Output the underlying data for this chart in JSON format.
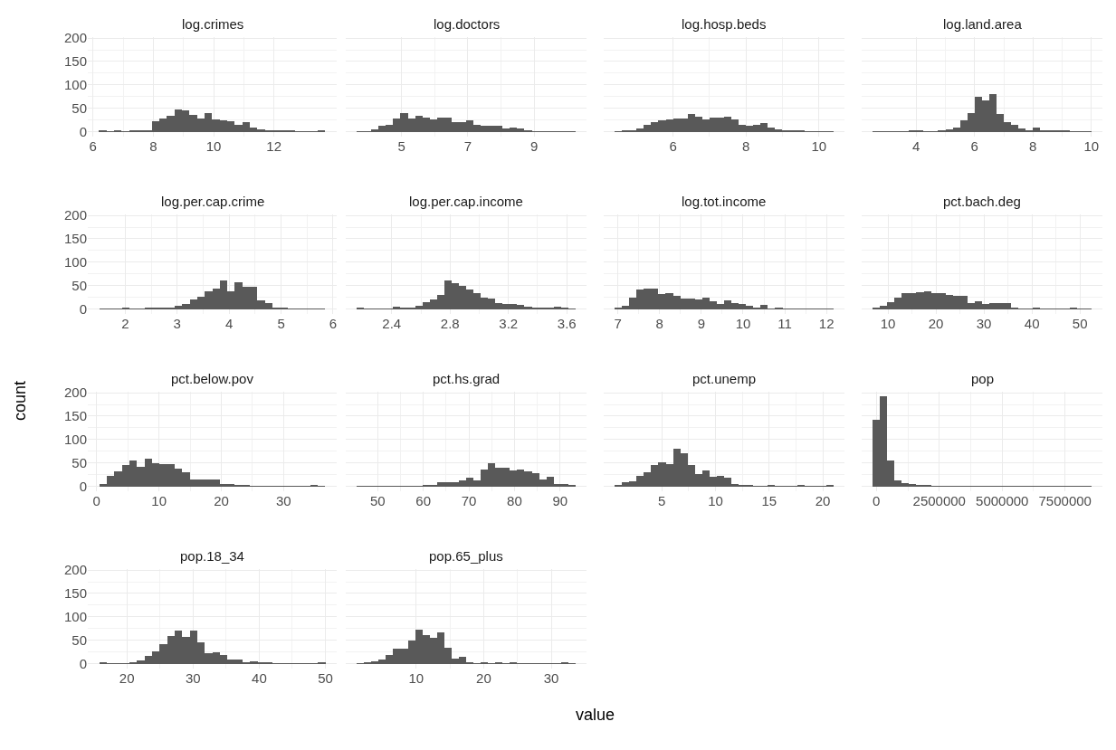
{
  "chart_data": [
    {
      "type": "histogram",
      "title": "log.crimes",
      "color": "#595959",
      "grid": true,
      "ylim": [
        -10,
        202
      ],
      "yticks": [
        0,
        50,
        100,
        150,
        200
      ],
      "xlim": [
        5.83,
        14.08
      ],
      "xticks": [
        6,
        8,
        10,
        12
      ],
      "bins": [
        6.2,
        6.45,
        6.7,
        6.95,
        7.2,
        7.45,
        7.7,
        7.95,
        8.2,
        8.45,
        8.7,
        8.95,
        9.2,
        9.45,
        9.7,
        9.95,
        10.2,
        10.45,
        10.7,
        10.95,
        11.2,
        11.45,
        11.7,
        11.95,
        12.2,
        12.45,
        12.7,
        12.95,
        13.2,
        13.45,
        13.7
      ],
      "values": [
        2,
        1,
        2,
        1,
        2,
        3,
        3,
        22,
        29,
        35,
        47,
        45,
        37,
        28,
        41,
        26,
        24,
        22,
        15,
        20,
        10,
        6,
        4,
        2,
        2,
        2,
        1,
        1,
        1,
        2
      ]
    },
    {
      "type": "histogram",
      "title": "log.doctors",
      "color": "#595959",
      "grid": true,
      "tick_labels": "x",
      "ylim": [
        -10,
        202
      ],
      "yticks": [
        0,
        50,
        100,
        150,
        200
      ],
      "xlim": [
        3.32,
        10.58
      ],
      "xticks": [
        5,
        7,
        9
      ],
      "bins": [
        3.65,
        3.87,
        4.09,
        4.31,
        4.53,
        4.75,
        4.97,
        5.19,
        5.41,
        5.63,
        5.85,
        6.07,
        6.29,
        6.51,
        6.73,
        6.95,
        7.17,
        7.39,
        7.61,
        7.83,
        8.05,
        8.27,
        8.49,
        8.71,
        8.93,
        9.15,
        9.37,
        9.59,
        9.81,
        10.03,
        10.25
      ],
      "values": [
        1,
        1,
        5,
        14,
        16,
        29,
        41,
        29,
        35,
        30,
        26,
        31,
        31,
        21,
        21,
        24,
        16,
        14,
        14,
        14,
        7,
        9,
        8,
        3,
        1,
        1,
        1,
        1,
        1,
        1
      ]
    },
    {
      "type": "histogram",
      "title": "log.hosp.beds",
      "color": "#595959",
      "grid": true,
      "tick_labels": "x",
      "ylim": [
        -10,
        202
      ],
      "yticks": [
        0,
        50,
        100,
        150,
        200
      ],
      "xlim": [
        4.1,
        10.7
      ],
      "xticks": [
        6,
        8,
        10
      ],
      "bins": [
        4.4,
        4.6,
        4.8,
        5.0,
        5.2,
        5.4,
        5.6,
        5.8,
        6.0,
        6.2,
        6.4,
        6.6,
        6.8,
        7.0,
        7.2,
        7.4,
        7.6,
        7.8,
        8.0,
        8.2,
        8.4,
        8.6,
        8.8,
        9.0,
        9.2,
        9.4,
        9.6,
        9.8,
        10.0,
        10.2,
        10.4
      ],
      "values": [
        1,
        2,
        2,
        7,
        15,
        20,
        24,
        26,
        28,
        28,
        39,
        33,
        27,
        31,
        30,
        33,
        26,
        15,
        13,
        16,
        18,
        9,
        6,
        2,
        4,
        2,
        1,
        1,
        1,
        1
      ]
    },
    {
      "type": "histogram",
      "title": "log.land.area",
      "color": "#595959",
      "grid": true,
      "tick_labels": "x",
      "ylim": [
        -10,
        202
      ],
      "yticks": [
        0,
        50,
        100,
        150,
        200
      ],
      "xlim": [
        2.13,
        10.38
      ],
      "xticks": [
        4,
        6,
        8,
        10
      ],
      "bins": [
        2.5,
        2.75,
        3.0,
        3.25,
        3.5,
        3.75,
        4.0,
        4.25,
        4.5,
        4.75,
        5.0,
        5.25,
        5.5,
        5.75,
        6.0,
        6.25,
        6.5,
        6.75,
        7.0,
        7.25,
        7.5,
        7.75,
        8.0,
        8.25,
        8.5,
        8.75,
        9.0,
        9.25,
        9.5,
        9.75,
        10.0
      ],
      "values": [
        1,
        1,
        1,
        1,
        1,
        4,
        4,
        1,
        1,
        3,
        5,
        9,
        24,
        41,
        75,
        68,
        81,
        38,
        21,
        15,
        7,
        4,
        10,
        4,
        4,
        4,
        2,
        1,
        1,
        1
      ]
    },
    {
      "type": "histogram",
      "title": "log.per.cap.crime",
      "color": "#595959",
      "grid": true,
      "ylim": [
        -10,
        202
      ],
      "yticks": [
        0,
        50,
        100,
        150,
        200
      ],
      "xlim": [
        1.28,
        6.07
      ],
      "xticks": [
        2,
        3,
        4,
        5,
        6
      ],
      "bins": [
        1.5,
        1.645,
        1.79,
        1.935,
        2.08,
        2.225,
        2.37,
        2.515,
        2.66,
        2.805,
        2.95,
        3.095,
        3.24,
        3.385,
        3.53,
        3.675,
        3.82,
        3.965,
        4.11,
        4.255,
        4.4,
        4.545,
        4.69,
        4.835,
        4.98,
        5.125,
        5.27,
        5.415,
        5.56,
        5.705,
        5.85
      ],
      "values": [
        1,
        1,
        1,
        3,
        1,
        1,
        2,
        2,
        2,
        3,
        7,
        11,
        21,
        27,
        39,
        44,
        61,
        38,
        58,
        48,
        48,
        19,
        13,
        3,
        2,
        1,
        1,
        1,
        1,
        1
      ]
    },
    {
      "type": "histogram",
      "title": "log.per.cap.income",
      "color": "#595959",
      "grid": true,
      "tick_labels": "x",
      "ylim": [
        -10,
        202
      ],
      "yticks": [
        0,
        50,
        100,
        150,
        200
      ],
      "xlim": [
        2.085,
        3.735
      ],
      "xticks": [
        2.4,
        2.8,
        3.2,
        3.6
      ],
      "bins": [
        2.16,
        2.21,
        2.26,
        2.31,
        2.36,
        2.41,
        2.46,
        2.51,
        2.56,
        2.61,
        2.66,
        2.71,
        2.76,
        2.81,
        2.86,
        2.91,
        2.96,
        3.01,
        3.06,
        3.11,
        3.16,
        3.21,
        3.26,
        3.31,
        3.36,
        3.41,
        3.46,
        3.51,
        3.56,
        3.61,
        3.66
      ],
      "values": [
        3,
        1,
        1,
        1,
        1,
        5,
        2,
        3,
        7,
        15,
        20,
        30,
        61,
        55,
        49,
        43,
        35,
        25,
        23,
        14,
        12,
        11,
        9,
        6,
        4,
        3,
        2,
        5,
        2,
        1
      ]
    },
    {
      "type": "histogram",
      "title": "log.tot.income",
      "color": "#595959",
      "grid": true,
      "tick_labels": "x",
      "ylim": [
        -10,
        202
      ],
      "yticks": [
        0,
        50,
        100,
        150,
        200
      ],
      "xlim": [
        6.66,
        12.43
      ],
      "xticks": [
        7,
        8,
        9,
        10,
        11,
        12
      ],
      "bins": [
        6.92,
        7.095,
        7.27,
        7.445,
        7.62,
        7.795,
        7.97,
        8.145,
        8.32,
        8.495,
        8.67,
        8.845,
        9.02,
        9.195,
        9.37,
        9.545,
        9.72,
        9.895,
        10.07,
        10.245,
        10.42,
        10.595,
        10.77,
        10.945,
        11.12,
        11.295,
        11.47,
        11.645,
        11.82,
        11.995,
        12.17
      ],
      "values": [
        2,
        8,
        24,
        42,
        44,
        44,
        33,
        35,
        29,
        23,
        23,
        20,
        24,
        17,
        12,
        18,
        14,
        11,
        8,
        4,
        9,
        1,
        3,
        1,
        1,
        1,
        1,
        1,
        1,
        1
      ]
    },
    {
      "type": "histogram",
      "title": "pct.bach.deg",
      "color": "#595959",
      "grid": true,
      "tick_labels": "x",
      "ylim": [
        -10,
        202
      ],
      "yticks": [
        0,
        50,
        100,
        150,
        200
      ],
      "xlim": [
        4.52,
        54.68
      ],
      "xticks": [
        10,
        20,
        30,
        40,
        50
      ],
      "bins": [
        6.8,
        8.32,
        9.84,
        11.36,
        12.88,
        14.4,
        15.92,
        17.44,
        18.96,
        20.48,
        22,
        23.52,
        25.04,
        26.56,
        28.08,
        29.6,
        31.12,
        32.64,
        34.16,
        35.68,
        37.2,
        38.72,
        40.24,
        41.76,
        43.28,
        44.8,
        46.32,
        47.84,
        49.36,
        50.88,
        52.4
      ],
      "values": [
        2,
        7,
        15,
        25,
        35,
        34,
        36,
        39,
        34,
        34,
        31,
        28,
        28,
        13,
        17,
        11,
        14,
        13,
        13,
        4,
        1,
        1,
        2,
        1,
        1,
        1,
        1,
        3,
        1,
        1
      ]
    },
    {
      "type": "histogram",
      "title": "pct.below.pov",
      "ylabel": "count",
      "color": "#595959",
      "grid": true,
      "ylim": [
        -10,
        202
      ],
      "yticks": [
        0,
        50,
        100,
        150,
        200
      ],
      "xlim": [
        -1.42,
        38.52
      ],
      "xticks": [
        0,
        10,
        20,
        30
      ],
      "bins": [
        0.4,
        1.61,
        2.82,
        4.03,
        5.24,
        6.45,
        7.66,
        8.87,
        10.08,
        11.29,
        12.5,
        13.71,
        14.92,
        16.13,
        17.34,
        18.55,
        19.76,
        20.97,
        22.18,
        23.39,
        24.6,
        25.81,
        27.02,
        28.23,
        29.44,
        30.65,
        31.86,
        33.07,
        34.28,
        35.49,
        36.7
      ],
      "values": [
        5,
        22,
        32,
        46,
        56,
        42,
        60,
        50,
        48,
        48,
        38,
        30,
        15,
        15,
        15,
        15,
        6,
        5,
        4,
        4,
        1,
        1,
        1,
        1,
        1,
        1,
        1,
        1,
        3,
        1
      ]
    },
    {
      "type": "histogram",
      "title": "pct.hs.grad",
      "color": "#595959",
      "grid": true,
      "tick_labels": "x",
      "ylim": [
        -10,
        202
      ],
      "yticks": [
        0,
        50,
        100,
        150,
        200
      ],
      "xlim": [
        43,
        95.8
      ],
      "xticks": [
        50,
        60,
        70,
        80,
        90
      ],
      "bins": [
        45.4,
        47,
        48.6,
        50.2,
        51.8,
        53.4,
        55,
        56.6,
        58.2,
        59.8,
        61.4,
        63,
        64.6,
        66.2,
        67.8,
        69.4,
        71,
        72.6,
        74.2,
        75.8,
        77.4,
        79,
        80.6,
        82.2,
        83.8,
        85.4,
        87,
        88.6,
        90.2,
        91.8,
        93.4
      ],
      "values": [
        1,
        1,
        1,
        1,
        1,
        1,
        1,
        1,
        1,
        3,
        3,
        9,
        9,
        9,
        14,
        18,
        13,
        36,
        49,
        40,
        40,
        34,
        36,
        33,
        28,
        16,
        20,
        5,
        6,
        2
      ]
    },
    {
      "type": "histogram",
      "title": "pct.unemp",
      "color": "#595959",
      "grid": true,
      "tick_labels": "x",
      "ylim": [
        -10,
        202
      ],
      "yticks": [
        0,
        50,
        100,
        150,
        200
      ],
      "xlim": [
        -0.42,
        22.02
      ],
      "xticks": [
        5,
        10,
        15,
        20
      ],
      "bins": [
        0.6,
        1.28,
        1.96,
        2.64,
        3.32,
        4,
        4.68,
        5.36,
        6.04,
        6.72,
        7.4,
        8.08,
        8.76,
        9.44,
        10.12,
        10.8,
        11.48,
        12.16,
        12.84,
        13.52,
        14.2,
        14.88,
        15.56,
        16.24,
        16.92,
        17.6,
        18.28,
        18.96,
        19.64,
        20.32,
        21
      ],
      "values": [
        2,
        9,
        12,
        22,
        30,
        45,
        51,
        47,
        80,
        70,
        45,
        26,
        35,
        20,
        23,
        18,
        5,
        3,
        4,
        1,
        1,
        3,
        1,
        1,
        1,
        3,
        1,
        1,
        1,
        2
      ]
    },
    {
      "type": "histogram",
      "title": "pop",
      "color": "#595959",
      "grid": true,
      "tick_labels": "x",
      "ylim": [
        -10,
        202
      ],
      "yticks": [
        0,
        50,
        100,
        150,
        200
      ],
      "xlim": [
        -585000,
        8985000
      ],
      "xticks": [
        0,
        2500000,
        5000000,
        7500000
      ],
      "bins": [
        -150000,
        140000,
        430000,
        720000,
        1010000,
        1300000,
        1590000,
        1880000,
        2170000,
        2460000,
        2750000,
        3040000,
        3330000,
        3620000,
        3910000,
        4200000,
        4490000,
        4780000,
        5070000,
        5360000,
        5650000,
        5940000,
        6230000,
        6520000,
        6810000,
        7100000,
        7390000,
        7680000,
        7970000,
        8260000,
        8550000
      ],
      "values": [
        142,
        192,
        55,
        14,
        8,
        5,
        3,
        2,
        1,
        1,
        1,
        1,
        1,
        1,
        1,
        1,
        1,
        1,
        1,
        1,
        1,
        1,
        1,
        1,
        1,
        1,
        1,
        1,
        1,
        1
      ]
    },
    {
      "type": "histogram",
      "title": "pop.18_34",
      "color": "#595959",
      "grid": true,
      "ylim": [
        -10,
        202
      ],
      "yticks": [
        0,
        50,
        100,
        150,
        200
      ],
      "xlim": [
        14.09,
        51.71
      ],
      "xticks": [
        20,
        30,
        40,
        50
      ],
      "bins": [
        15.8,
        16.94,
        18.08,
        19.22,
        20.36,
        21.5,
        22.64,
        23.78,
        24.92,
        26.06,
        27.2,
        28.34,
        29.48,
        30.62,
        31.76,
        32.9,
        34.04,
        35.18,
        36.32,
        37.46,
        38.6,
        39.74,
        40.88,
        42.02,
        43.16,
        44.3,
        45.44,
        46.58,
        47.72,
        48.86,
        50
      ],
      "values": [
        2,
        1,
        1,
        1,
        3,
        7,
        17,
        26,
        43,
        60,
        70,
        57,
        70,
        45,
        22,
        25,
        18,
        10,
        10,
        4,
        5,
        2,
        2,
        1,
        1,
        1,
        1,
        1,
        1,
        2
      ]
    },
    {
      "type": "histogram",
      "title": "pop.65_plus",
      "xlabel": "value",
      "color": "#595959",
      "grid": true,
      "tick_labels": "x",
      "ylim": [
        -10,
        202
      ],
      "yticks": [
        0,
        50,
        100,
        150,
        200
      ],
      "xlim": [
        -0.42,
        35.22
      ],
      "xticks": [
        10,
        20,
        30
      ],
      "bins": [
        1.2,
        2.28,
        3.36,
        4.44,
        5.52,
        6.6,
        7.68,
        8.76,
        9.84,
        10.92,
        12,
        13.08,
        14.16,
        15.24,
        16.32,
        17.4,
        18.48,
        19.56,
        20.64,
        21.72,
        22.8,
        23.88,
        24.96,
        26.04,
        27.12,
        28.2,
        29.28,
        30.36,
        31.44,
        32.52,
        33.6
      ],
      "values": [
        1,
        2,
        5,
        10,
        18,
        32,
        33,
        50,
        72,
        62,
        56,
        68,
        35,
        12,
        15,
        3,
        1,
        4,
        1,
        2,
        1,
        2,
        1,
        1,
        1,
        1,
        1,
        1,
        2,
        1
      ]
    }
  ]
}
